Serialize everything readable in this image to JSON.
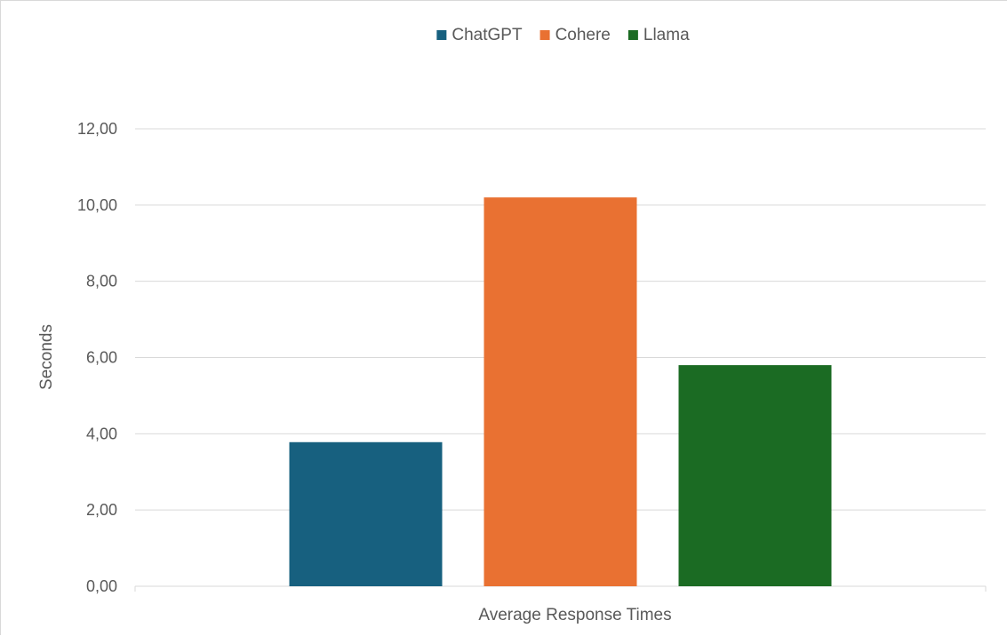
{
  "chart_data": {
    "type": "bar",
    "title": "",
    "ylabel": "Seconds",
    "category_label": "Average Response Times",
    "ylim": [
      0,
      12
    ],
    "ytick_step": 2,
    "ytick_labels": [
      "0,00",
      "2,00",
      "4,00",
      "6,00",
      "8,00",
      "10,00",
      "12,00"
    ],
    "grid": true,
    "legend_position": "top",
    "series": [
      {
        "name": "ChatGPT",
        "value": 3.78,
        "color": "#17607f"
      },
      {
        "name": "Cohere",
        "value": 10.2,
        "color": "#e97132"
      },
      {
        "name": "Llama",
        "value": 5.8,
        "color": "#1b6b23"
      }
    ]
  }
}
